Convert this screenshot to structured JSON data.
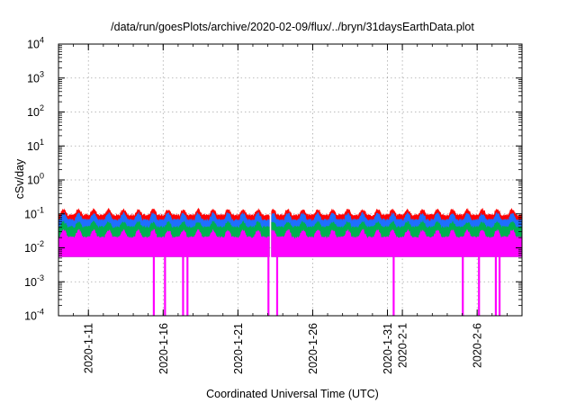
{
  "chart_data": {
    "type": "area",
    "title": "/data/run/goesPlots/archive/2020-02-09/flux/../bryn/31daysEarthData.plot",
    "xlabel": "Coordinated Universal Time (UTC)",
    "ylabel": "cSv/day",
    "yscale": "log",
    "ylim": [
      0.0001,
      10000
    ],
    "y_ticks": [
      {
        "base": "10",
        "exp": "-4",
        "value": 0.0001
      },
      {
        "base": "10",
        "exp": "-3",
        "value": 0.001
      },
      {
        "base": "10",
        "exp": "-2",
        "value": 0.01
      },
      {
        "base": "10",
        "exp": "-1",
        "value": 0.1
      },
      {
        "base": "10",
        "exp": "0",
        "value": 1
      },
      {
        "base": "10",
        "exp": "1",
        "value": 10
      },
      {
        "base": "10",
        "exp": "2",
        "value": 100
      },
      {
        "base": "10",
        "exp": "3",
        "value": 1000
      },
      {
        "base": "10",
        "exp": "4",
        "value": 10000
      }
    ],
    "xlim": [
      "2020-01-09",
      "2020-02-09"
    ],
    "x_ticks": [
      "2020-1-11",
      "2020-1-16",
      "2020-1-21",
      "2020-1-26",
      "2020-1-31",
      "2020-2-1",
      "2020-2-6"
    ],
    "grid": true,
    "series": [
      {
        "color": "#ff0000",
        "baseline": 0.09,
        "daily_peak": 0.14
      },
      {
        "color": "#1f6fff",
        "baseline": 0.065,
        "daily_peak": 0.11
      },
      {
        "color": "#00b050",
        "baseline": 0.04,
        "daily_peak": 0.06
      },
      {
        "color": "#ff00ff",
        "baseline": 0.02,
        "daily_peak": 0.035,
        "floor": 0.006
      }
    ],
    "gaps": [
      {
        "start": "2020-01-23 03:00",
        "end": "2020-01-23 06:00"
      }
    ],
    "dropouts": [
      {
        "date": "2020-01-15 09:00",
        "value": 0.0001
      },
      {
        "date": "2020-01-16 03:00",
        "value": 0.0001
      },
      {
        "date": "2020-01-17 08:00",
        "value": 0.0001
      },
      {
        "date": "2020-01-17 15:00",
        "value": 0.0001
      },
      {
        "date": "2020-01-23 01:00",
        "value": 0.0001
      },
      {
        "date": "2020-01-23 15:00",
        "value": 0.0001
      },
      {
        "date": "2020-01-31 10:00",
        "value": 0.0001
      },
      {
        "date": "2020-02-05 01:00",
        "value": 0.0001
      },
      {
        "date": "2020-02-06 03:00",
        "value": 0.0001
      },
      {
        "date": "2020-02-07 06:00",
        "value": 0.0001
      },
      {
        "date": "2020-02-07 12:00",
        "value": 0.0001
      }
    ]
  }
}
